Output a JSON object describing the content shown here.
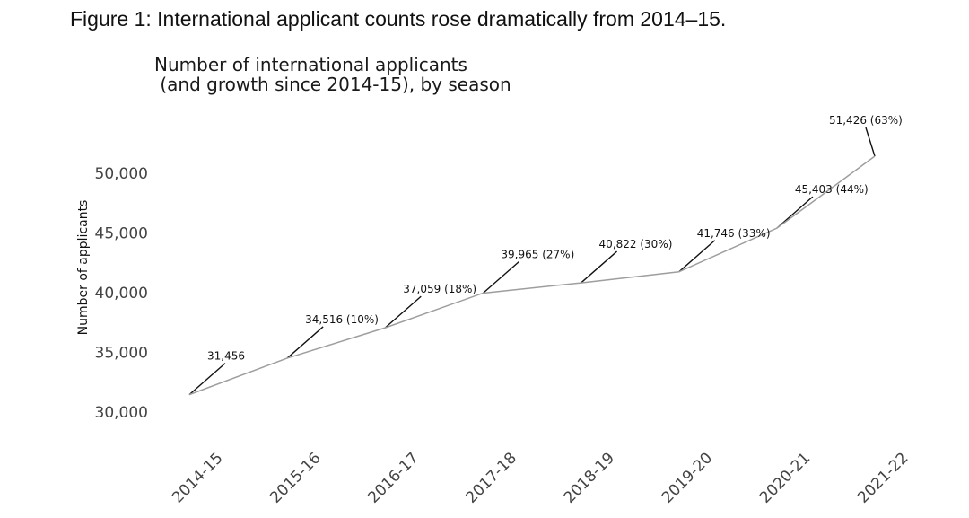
{
  "figure_title": "Figure 1: International applicant counts rose dramatically from 2014–15.",
  "chart_data": {
    "type": "line",
    "title": "Number of international applicants\n (and growth since 2014-15), by season",
    "xlabel": "",
    "ylabel": "Number of applicants",
    "categories": [
      "2014-15",
      "2015-16",
      "2016-17",
      "2017-18",
      "2018-19",
      "2019-20",
      "2020-21",
      "2021-22"
    ],
    "values": [
      31456,
      34516,
      37059,
      39965,
      40822,
      41746,
      45403,
      51426
    ],
    "point_labels": [
      "31,456",
      "34,516 (10%)",
      "37,059 (18%)",
      "39,965 (27%)",
      "40,822 (30%)",
      "41,746 (33%)",
      "45,403 (44%)",
      "51,426 (63%)"
    ],
    "yticks": [
      30000,
      35000,
      40000,
      45000,
      50000
    ],
    "ytick_labels": [
      "30,000",
      "35,000",
      "40,000",
      "45,000",
      "50,000"
    ],
    "ylim": [
      30000,
      50000
    ],
    "grid": false,
    "line_color": "#9e9e9e",
    "leader_color": "#111111"
  }
}
